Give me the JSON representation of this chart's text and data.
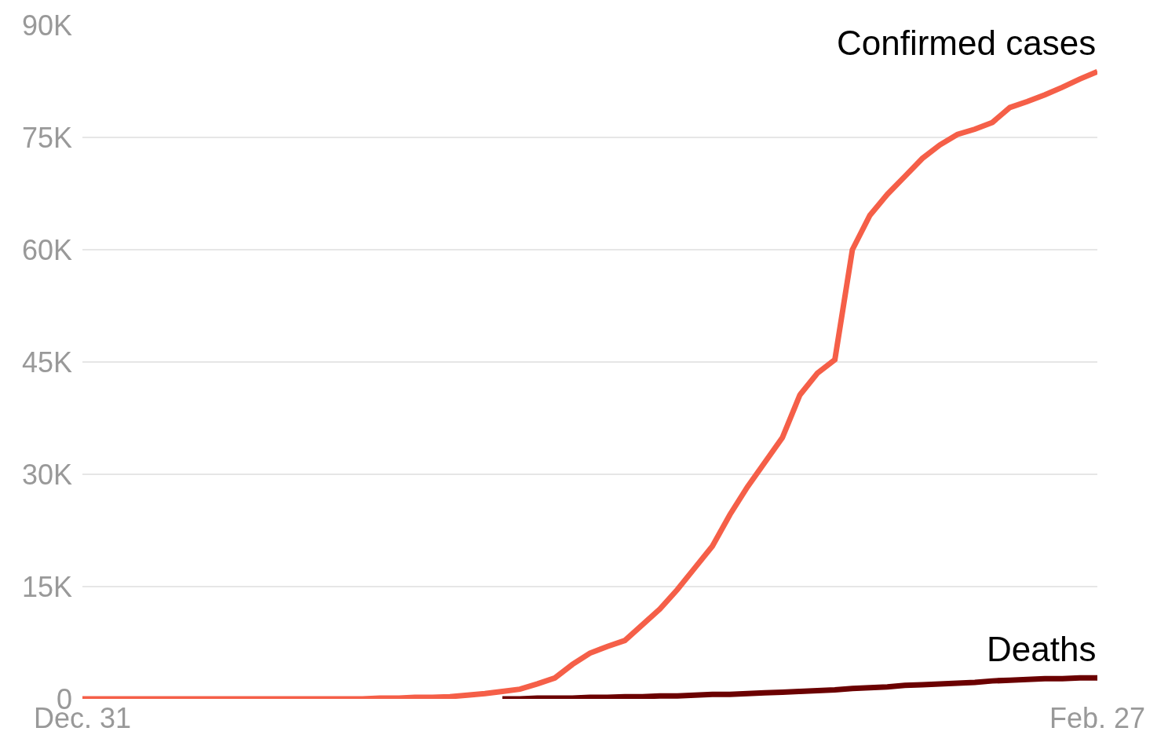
{
  "chart_data": {
    "type": "line",
    "legend": false,
    "grid": "y",
    "line_style": "solid",
    "marker": "none",
    "categories": [
      "Dec. 31",
      null,
      null,
      null,
      null,
      null,
      null,
      null,
      null,
      null,
      null,
      null,
      null,
      null,
      null,
      null,
      null,
      null,
      null,
      null,
      null,
      null,
      null,
      null,
      null,
      null,
      null,
      null,
      null,
      null,
      null,
      null,
      null,
      null,
      null,
      null,
      null,
      null,
      null,
      null,
      null,
      null,
      null,
      null,
      null,
      null,
      null,
      null,
      null,
      null,
      null,
      null,
      null,
      null,
      null,
      null,
      null,
      null,
      "Feb. 27"
    ],
    "ylim": [
      0,
      90000
    ],
    "yticks": [
      {
        "value": 0,
        "label": "0"
      },
      {
        "value": 15000,
        "label": "15K"
      },
      {
        "value": 30000,
        "label": "30K"
      },
      {
        "value": 45000,
        "label": "45K"
      },
      {
        "value": 60000,
        "label": "60K"
      },
      {
        "value": 75000,
        "label": "75K"
      },
      {
        "value": 90000,
        "label": "90K"
      }
    ],
    "series": [
      {
        "name": "Deaths",
        "color": "#6b0000",
        "values": [
          null,
          null,
          null,
          null,
          null,
          null,
          null,
          null,
          null,
          null,
          null,
          null,
          null,
          null,
          null,
          null,
          null,
          null,
          null,
          null,
          null,
          null,
          null,
          null,
          0,
          0,
          100,
          100,
          100,
          200,
          200,
          300,
          300,
          400,
          400,
          500,
          600,
          600,
          700,
          800,
          900,
          1000,
          1100,
          1200,
          1400,
          1500,
          1600,
          1800,
          1900,
          2000,
          2100,
          2200,
          2400,
          2500,
          2600,
          2700,
          2700,
          2800,
          2800
        ]
      },
      {
        "name": "Confirmed cases",
        "color": "#f55f48",
        "values": [
          0,
          0,
          0,
          0,
          0,
          0,
          0,
          0,
          0,
          0,
          0,
          0,
          0,
          0,
          0,
          0,
          0,
          100,
          100,
          200,
          200,
          300,
          500,
          700,
          1000,
          1300,
          2000,
          2800,
          4600,
          6100,
          7000,
          7800,
          9900,
          12000,
          14600,
          17500,
          20400,
          24600,
          28300,
          31600,
          34900,
          40600,
          43500,
          45300,
          60000,
          64600,
          67400,
          69800,
          72200,
          74000,
          75400,
          76100,
          77000,
          79000,
          79800,
          80700,
          81700,
          82800,
          83800
        ]
      }
    ]
  }
}
